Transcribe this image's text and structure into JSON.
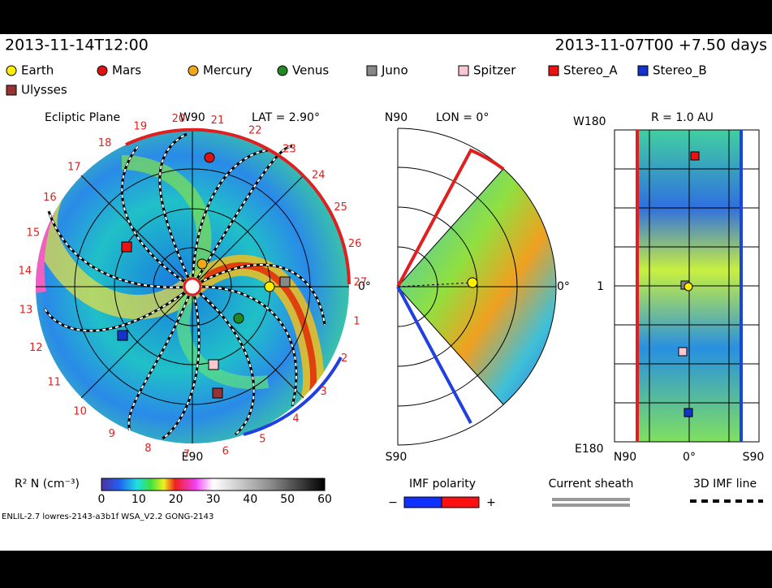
{
  "header": {
    "model_time": "2013-11-14T12:00",
    "run_time": "2013-11-07T00 +7.50 days"
  },
  "legend": [
    {
      "label": "Earth",
      "color": "#ffee00"
    },
    {
      "label": "Mars",
      "color": "#dd1111"
    },
    {
      "label": "Mercury",
      "color": "#f0a818"
    },
    {
      "label": "Venus",
      "color": "#228822"
    },
    {
      "label": "Juno",
      "color": "#888888"
    },
    {
      "label": "Spitzer",
      "color": "#f8c8d0"
    },
    {
      "label": "Stereo_A",
      "color": "#ee1111"
    },
    {
      "label": "Stereo_B",
      "color": "#1133cc"
    },
    {
      "label": "Ulysses",
      "color": "#993333"
    }
  ],
  "ecliptic": {
    "title": "Ecliptic Plane",
    "top": "W90",
    "lat": "LAT = 2.90°",
    "right": "0°",
    "bottom": "E90",
    "sectors": [
      "1",
      "2",
      "3",
      "4",
      "5",
      "6",
      "7",
      "8",
      "9",
      "10",
      "11",
      "12",
      "13",
      "14",
      "15",
      "16",
      "17",
      "18",
      "19",
      "20",
      "21",
      "22",
      "23",
      "24",
      "25",
      "26",
      "27"
    ]
  },
  "meridional": {
    "top": "N90",
    "lon": "LON = 0°",
    "right": "0°",
    "bottom": "S90"
  },
  "sphere": {
    "top_left": "W180",
    "radius": "R = 1.0 AU",
    "middle": "1",
    "bottom_left": "E180",
    "bottom_labels": [
      "N90",
      "0°",
      "S90"
    ]
  },
  "colorbar": {
    "label": "R² N (cm⁻³)",
    "ticks": [
      "0",
      "10",
      "20",
      "30",
      "40",
      "50",
      "60"
    ]
  },
  "keys": {
    "imf": "IMF polarity",
    "minus": "−",
    "plus": "+",
    "sheath": "Current sheath",
    "imf_line": "3D IMF line"
  },
  "footer": "ENLIL-2.7 lowres-2143-a3b1f WSA_V2.2 GONG-2143"
}
